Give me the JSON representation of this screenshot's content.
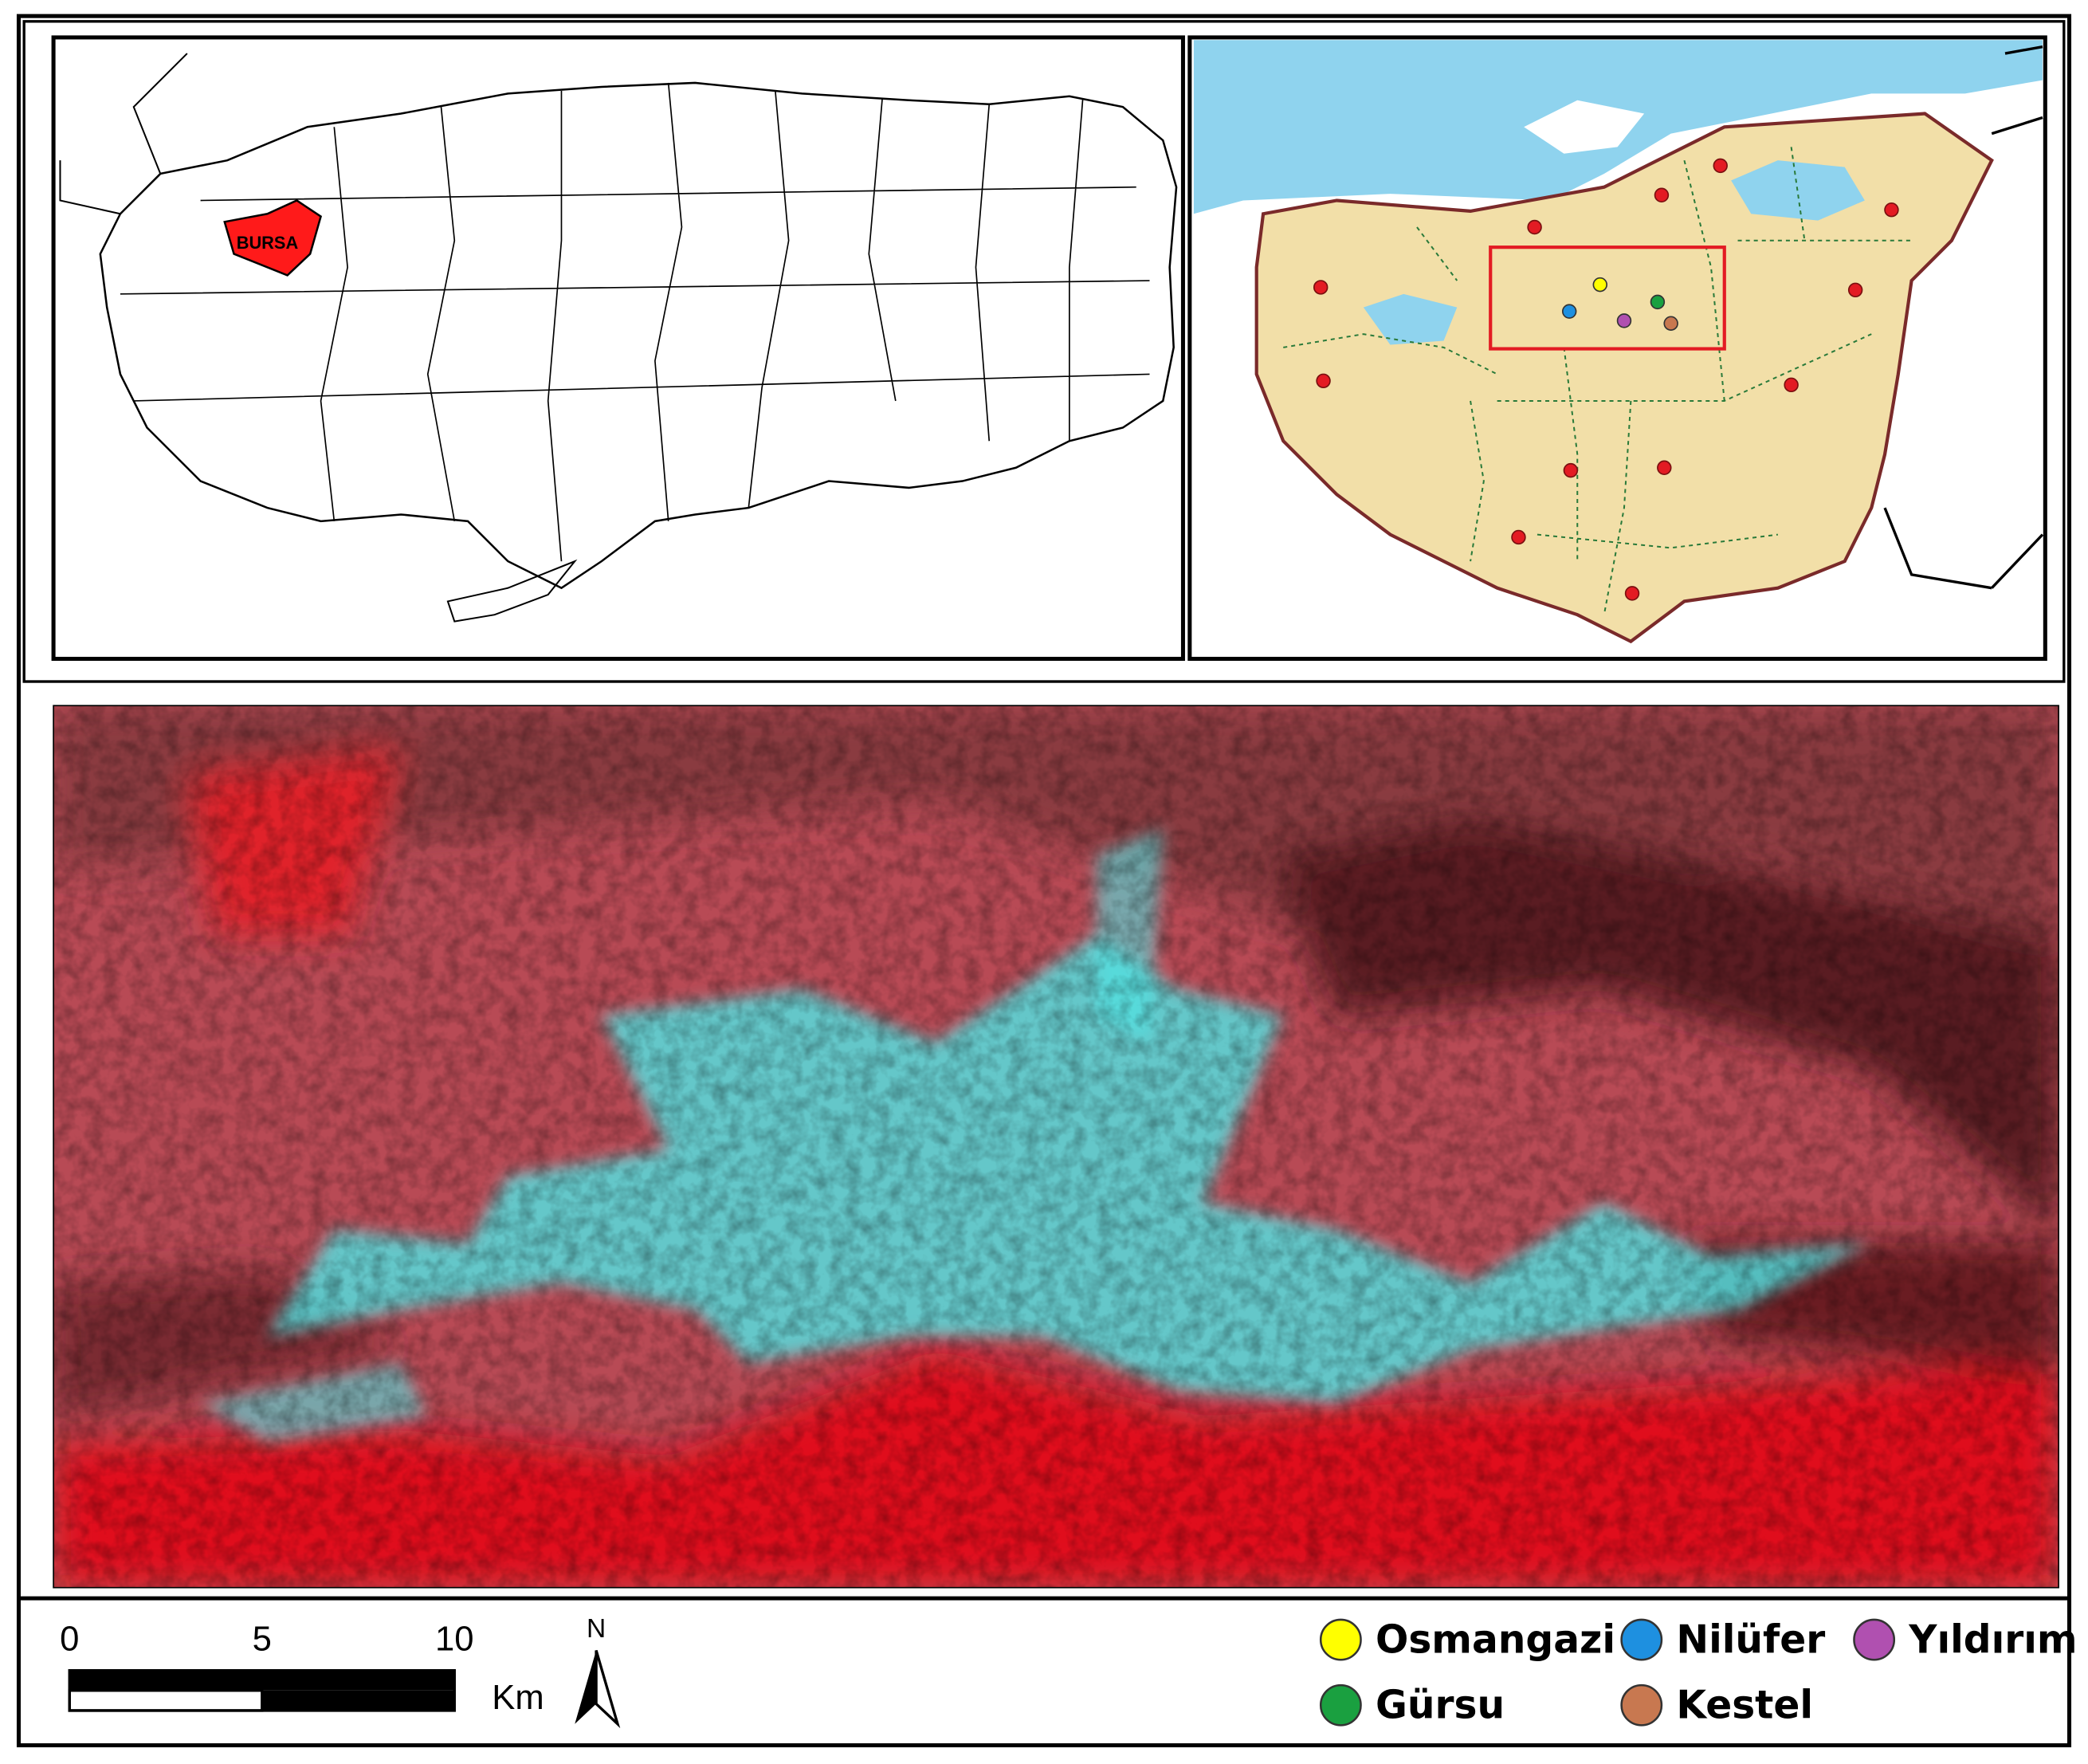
{
  "inset_label": "BURSA",
  "scale_bar": {
    "ticks": [
      "0",
      "5",
      "10"
    ],
    "unit": "Km"
  },
  "north_arrow": "N",
  "legend": [
    {
      "name": "Osmangazi",
      "color": "#ffff00"
    },
    {
      "name": "Nilüfer",
      "color": "#1e90e0"
    },
    {
      "name": "Yıldırım",
      "color": "#b050b0"
    },
    {
      "name": "Gürsu",
      "color": "#1aa040"
    },
    {
      "name": "Kestel",
      "color": "#c87850"
    }
  ]
}
